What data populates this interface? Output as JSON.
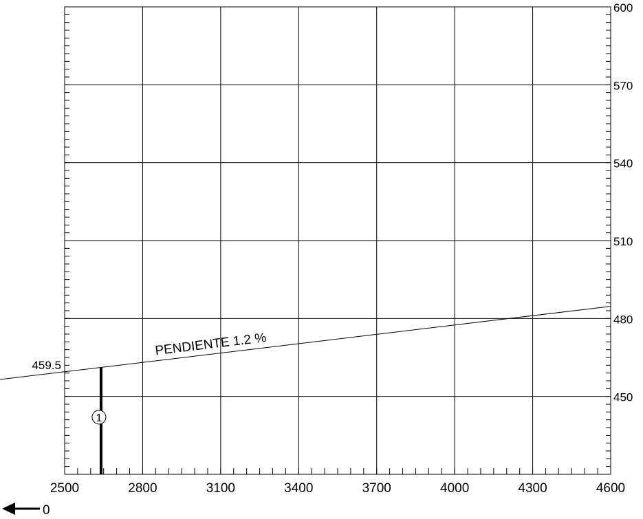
{
  "chart_data": {
    "type": "line",
    "title": "",
    "xlabel": "",
    "ylabel": "",
    "xlim": [
      2500,
      4600
    ],
    "ylim": [
      420,
      600
    ],
    "x_ticks": [
      2500,
      2800,
      3100,
      3400,
      3700,
      4000,
      4300,
      4600
    ],
    "x_tick_labels": [
      "2500",
      "2800",
      "3100",
      "3400",
      "3700",
      "4000",
      "4300",
      "4600"
    ],
    "y_ticks": [
      450,
      480,
      510,
      540,
      570,
      600
    ],
    "y_tick_labels": [
      "450",
      "480",
      "510",
      "540",
      "570",
      "600"
    ],
    "grid": true,
    "series": [
      {
        "type": "line",
        "x": [
          2500,
          4600
        ],
        "y": [
          459.5,
          484.7
        ],
        "color": "#000000"
      }
    ],
    "markers": [
      {
        "type": "vline",
        "x": 2640,
        "y0": 420,
        "y1": 461.2,
        "label": "1",
        "label_y": 442,
        "color": "#000000"
      }
    ],
    "annotations": [
      {
        "text": "PENDIENTE 1.2 %",
        "x": 2850,
        "y": 466
      },
      {
        "text": "459.5",
        "x": 2500,
        "y": 459.5
      }
    ],
    "direction_arrow": {
      "label": "0",
      "direction": "left"
    }
  }
}
